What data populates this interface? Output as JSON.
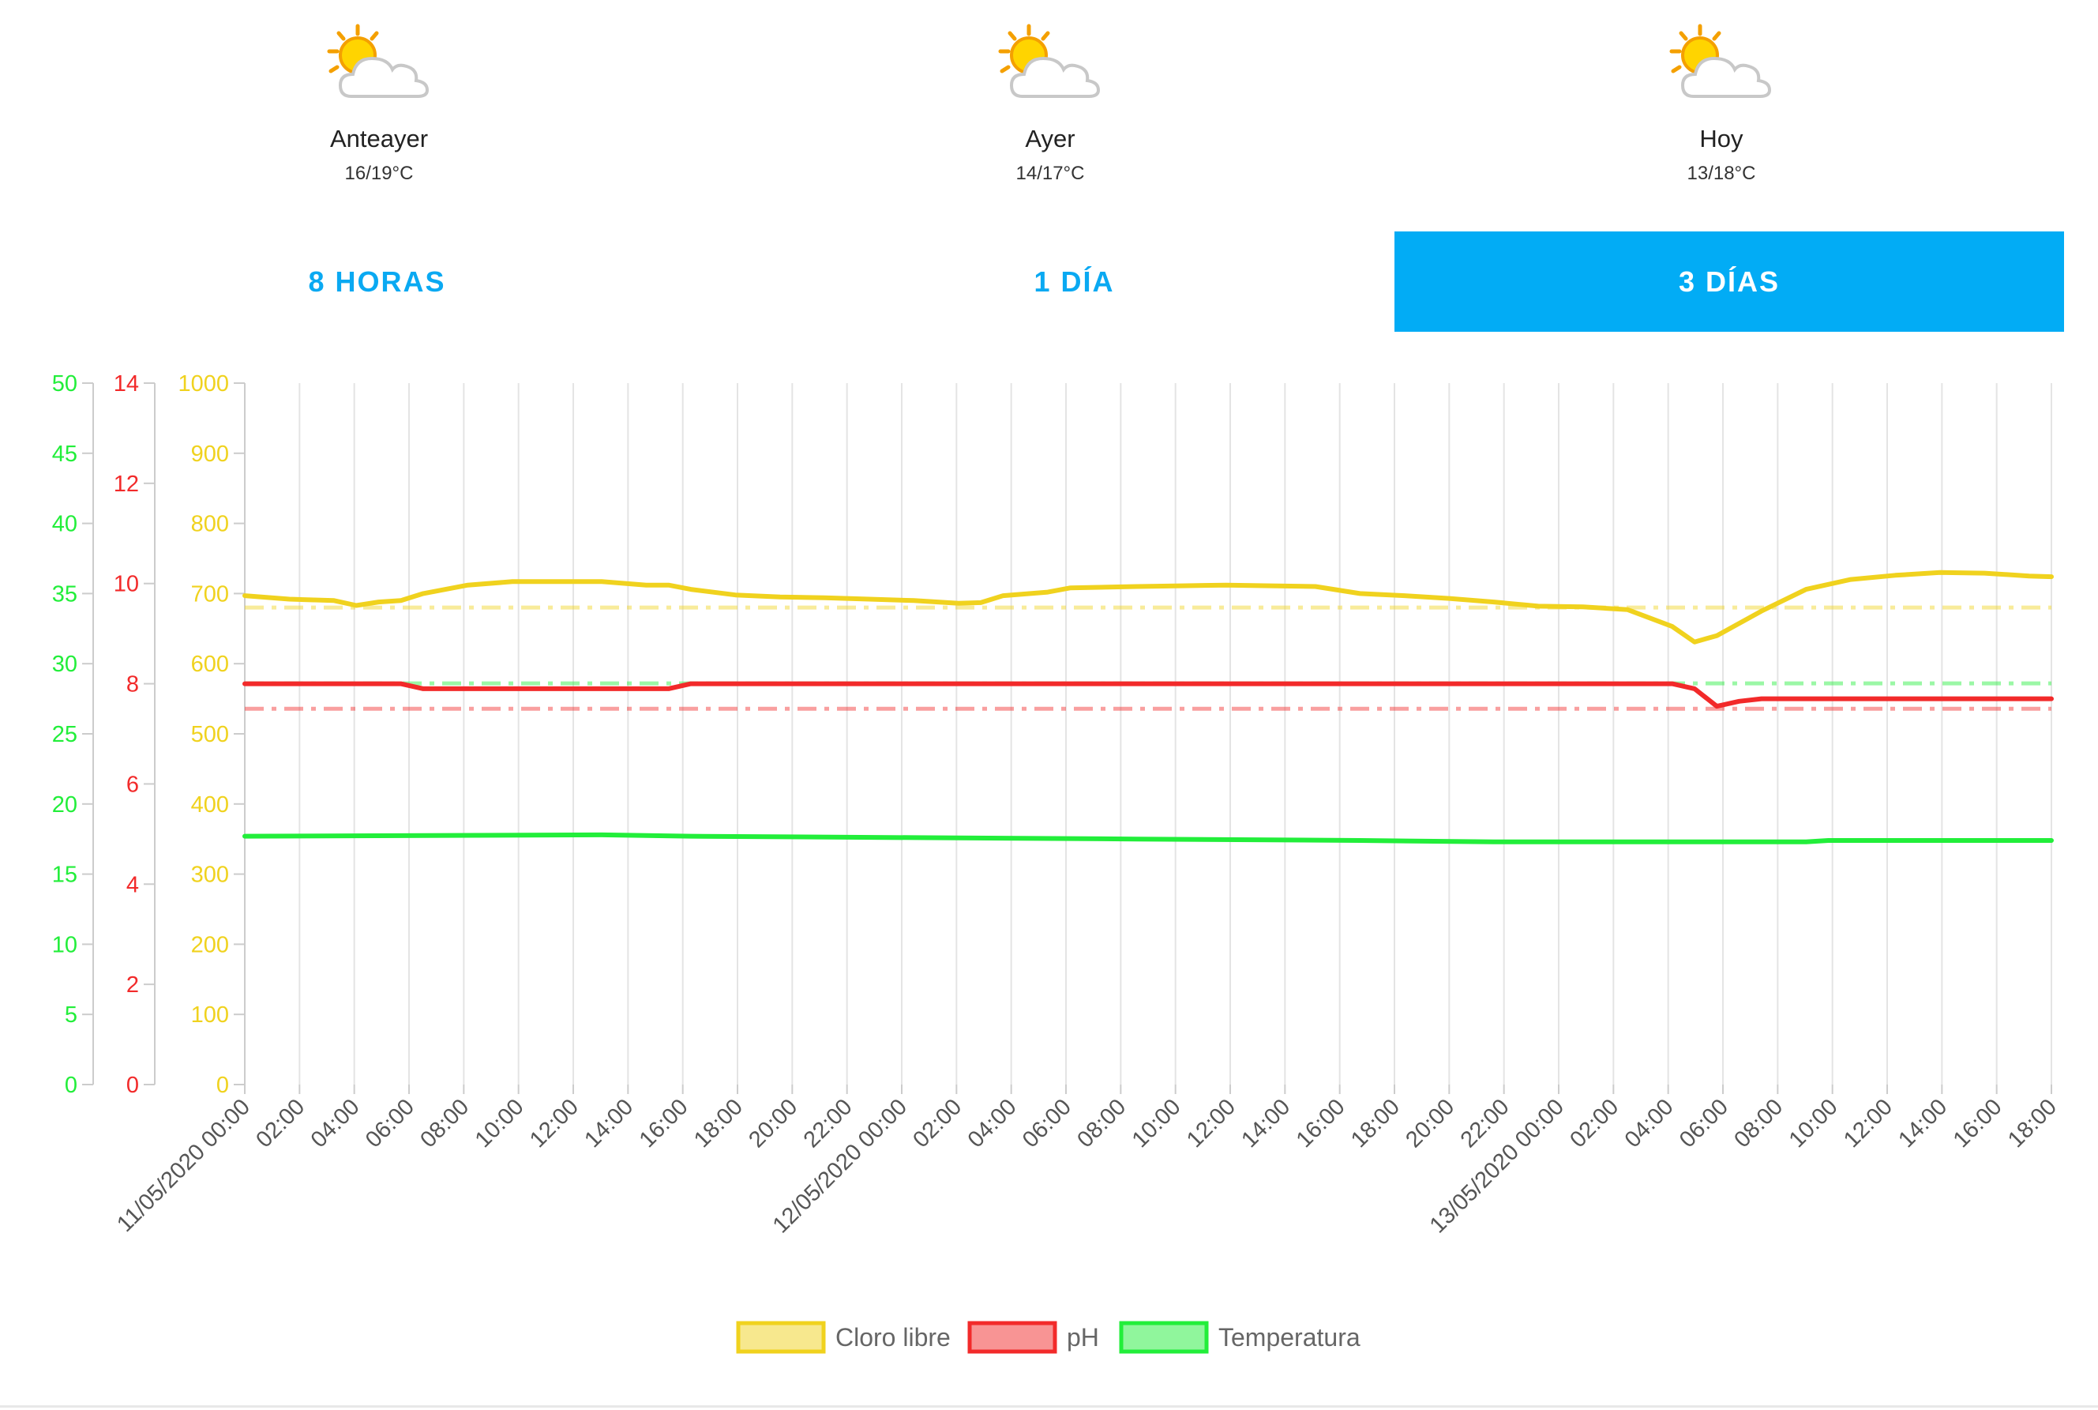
{
  "weather": [
    {
      "day": "Anteayer",
      "temp": "16/19°C",
      "icon": "sun-cloud-icon"
    },
    {
      "day": "Ayer",
      "temp": "14/17°C",
      "icon": "sun-cloud-icon"
    },
    {
      "day": "Hoy",
      "temp": "13/18°C",
      "icon": "sun-cloud-icon"
    }
  ],
  "tabs": [
    {
      "label": "8 HORAS",
      "active": false
    },
    {
      "label": "1 DÍA",
      "active": false
    },
    {
      "label": "3 DÍAS",
      "active": true
    }
  ],
  "colors": {
    "cloro": "#f0d21e",
    "ph": "#f22a2a",
    "temp": "#22ee3a",
    "accent": "#02acf5"
  },
  "chart_data": {
    "type": "line",
    "x_tick_labels": [
      "11/05/2020 00:00",
      "02:00",
      "04:00",
      "06:00",
      "08:00",
      "10:00",
      "12:00",
      "14:00",
      "16:00",
      "18:00",
      "20:00",
      "22:00",
      "12/05/2020 00:00",
      "02:00",
      "04:00",
      "06:00",
      "08:00",
      "10:00",
      "12:00",
      "14:00",
      "16:00",
      "18:00",
      "20:00",
      "22:00",
      "13/05/2020 00:00",
      "02:00",
      "04:00",
      "06:00",
      "08:00",
      "10:00",
      "12:00",
      "14:00",
      "16:00",
      "18:00"
    ],
    "x_unit": "hours since 11/05/2020 00:00",
    "axes": [
      {
        "id": "temp",
        "range": [
          0,
          50
        ],
        "ticks": [
          "0",
          "5",
          "10",
          "15",
          "20",
          "25",
          "30",
          "35",
          "40",
          "45",
          "50"
        ]
      },
      {
        "id": "ph",
        "range": [
          0,
          14
        ],
        "ticks": [
          "0",
          "2",
          "4",
          "6",
          "8",
          "10",
          "12",
          "14"
        ]
      },
      {
        "id": "cloro",
        "range": [
          0,
          1000
        ],
        "ticks": [
          "0",
          "100",
          "200",
          "300",
          "400",
          "500",
          "600",
          "700",
          "800",
          "900",
          "1000"
        ]
      }
    ],
    "series": [
      {
        "name": "Cloro libre",
        "axis": "cloro",
        "threshold": 680,
        "points": [
          [
            0,
            697
          ],
          [
            2,
            692
          ],
          [
            4,
            690
          ],
          [
            5,
            683
          ],
          [
            6,
            688
          ],
          [
            7,
            690
          ],
          [
            8,
            700
          ],
          [
            10,
            712
          ],
          [
            12,
            717
          ],
          [
            14,
            717
          ],
          [
            16,
            717
          ],
          [
            18,
            712
          ],
          [
            19,
            712
          ],
          [
            20,
            706
          ],
          [
            22,
            698
          ],
          [
            24,
            695
          ],
          [
            26,
            694
          ],
          [
            28,
            692
          ],
          [
            30,
            690
          ],
          [
            32,
            686
          ],
          [
            33,
            687
          ],
          [
            34,
            697
          ],
          [
            36,
            702
          ],
          [
            37,
            708
          ],
          [
            40,
            710
          ],
          [
            42,
            711
          ],
          [
            44,
            712
          ],
          [
            46,
            711
          ],
          [
            48,
            710
          ],
          [
            50,
            700
          ],
          [
            52,
            697
          ],
          [
            54,
            693
          ],
          [
            56,
            688
          ],
          [
            58,
            682
          ],
          [
            60,
            681
          ],
          [
            62,
            677
          ],
          [
            64,
            653
          ],
          [
            65,
            631
          ],
          [
            66,
            640
          ],
          [
            68,
            675
          ],
          [
            70,
            706
          ],
          [
            72,
            720
          ],
          [
            74,
            726
          ],
          [
            76,
            730
          ],
          [
            78,
            729
          ],
          [
            80,
            725
          ],
          [
            81,
            724
          ]
        ]
      },
      {
        "name": "pH",
        "axis": "ph",
        "threshold": 7.5,
        "points": [
          [
            0,
            8.0
          ],
          [
            7,
            8.0
          ],
          [
            8,
            7.9
          ],
          [
            19,
            7.9
          ],
          [
            20,
            8.0
          ],
          [
            62,
            8.0
          ],
          [
            64,
            8.0
          ],
          [
            65,
            7.9
          ],
          [
            66,
            7.55
          ],
          [
            67,
            7.65
          ],
          [
            68,
            7.7
          ],
          [
            81,
            7.7
          ]
        ]
      },
      {
        "name": "Temperatura",
        "axis": "temp",
        "threshold": 28.6,
        "points": [
          [
            0,
            17.7
          ],
          [
            16,
            17.8
          ],
          [
            20,
            17.7
          ],
          [
            30,
            17.6
          ],
          [
            40,
            17.5
          ],
          [
            50,
            17.4
          ],
          [
            56,
            17.3
          ],
          [
            70,
            17.3
          ],
          [
            71,
            17.4
          ],
          [
            81,
            17.4
          ]
        ]
      }
    ],
    "legend": [
      "Cloro libre",
      "pH",
      "Temperatura"
    ],
    "legend_position": "bottom",
    "grid": true
  }
}
